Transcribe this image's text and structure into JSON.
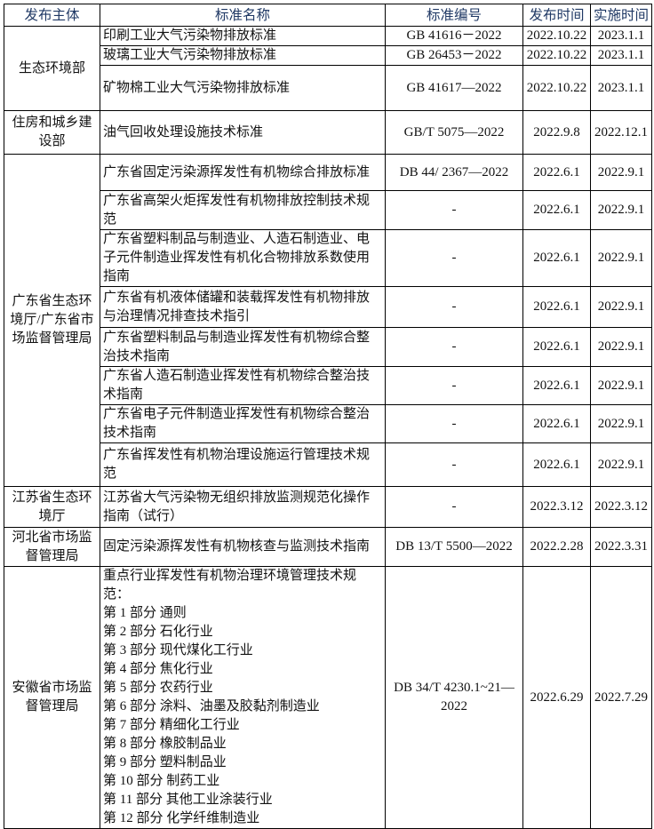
{
  "header": {
    "agency": "发布主体",
    "name": "标准名称",
    "code": "标准编号",
    "publish": "发布时间",
    "effective": "实施时间"
  },
  "rows": [
    {
      "agency": "生态环境部",
      "name": "印刷工业大气污染物排放标准",
      "code": "GB 41616－2022",
      "publish": "2022.10.22",
      "effective": "2023.1.1"
    },
    {
      "name": "玻璃工业大气污染物排放标准",
      "code": "GB 26453－2022",
      "publish": "2022.10.22",
      "effective": "2023.1.1"
    },
    {
      "name": "矿物棉工业大气污染物排放标准",
      "code": "GB 41617—2022",
      "publish": "2022.10.22",
      "effective": "2023.1.1"
    },
    {
      "agency": "住房和城乡建设部",
      "name": "油气回收处理设施技术标准",
      "code": "GB/T 5075—2022",
      "publish": "2022.9.8",
      "effective": "2022.12.1"
    },
    {
      "agency": "广东省生态环境厅/广东省市场监督管理局",
      "name": "广东省固定污染源挥发性有机物综合排放标准",
      "code": "DB 44/ 2367—2022",
      "publish": "2022.6.1",
      "effective": "2022.9.1"
    },
    {
      "name": "广东省高架火炬挥发性有机物排放控制技术规范",
      "code": "-",
      "publish": "2022.6.1",
      "effective": "2022.9.1"
    },
    {
      "name": "广东省塑料制品与制造业、人造石制造业、电子元件制造业挥发性有机化合物排放系数使用指南",
      "code": "-",
      "publish": "2022.6.1",
      "effective": "2022.9.1"
    },
    {
      "name": "广东省有机液体储罐和装载挥发性有机物排放与治理情况排查技术指引",
      "code": "-",
      "publish": "2022.6.1",
      "effective": "2022.9.1"
    },
    {
      "name": "广东省塑料制品与制造业挥发性有机物综合整治技术指南",
      "code": "-",
      "publish": "2022.6.1",
      "effective": "2022.9.1"
    },
    {
      "name": "广东省人造石制造业挥发性有机物综合整治技术指南",
      "code": "-",
      "publish": "2022.6.1",
      "effective": "2022.9.1"
    },
    {
      "name": "广东省电子元件制造业挥发性有机物综合整治技术指南",
      "code": "-",
      "publish": "2022.6.1",
      "effective": "2022.9.1"
    },
    {
      "name": "广东省挥发性有机物治理设施运行管理技术规范",
      "code": "-",
      "publish": "2022.6.1",
      "effective": "2022.9.1"
    },
    {
      "agency": "江苏省生态环境厅",
      "name": "江苏省大气污染物无组织排放监测规范化操作指南（试行）",
      "code": "-",
      "publish": "2022.3.12",
      "effective": "2022.3.12"
    },
    {
      "agency": "河北省市场监督管理局",
      "name": "固定污染源挥发性有机物核查与监测技术指南",
      "code": "DB 13/T 5500—2022",
      "publish": "2022.2.28",
      "effective": "2022.3.31"
    },
    {
      "agency": "安徽省市场监督管理局",
      "name": "重点行业挥发性有机物治理环境管理技术规范：\n第 1 部分  通则\n第 2 部分  石化行业\n第 3 部分  现代煤化工行业\n第 4 部分  焦化行业\n第 5 部分 农药行业\n第 6 部分  涂料、油墨及胶黏剂制造业\n第 7 部分  精细化工行业\n第 8 部分  橡胶制品业\n第 9 部分  塑料制品业\n第 10 部分  制药工业\n第 11 部分  其他工业涂装行业\n第 12 部分  化学纤维制造业",
      "code": "DB 34/T 4230.1~21—2022",
      "publish": "2022.6.29",
      "effective": "2022.7.29"
    }
  ]
}
